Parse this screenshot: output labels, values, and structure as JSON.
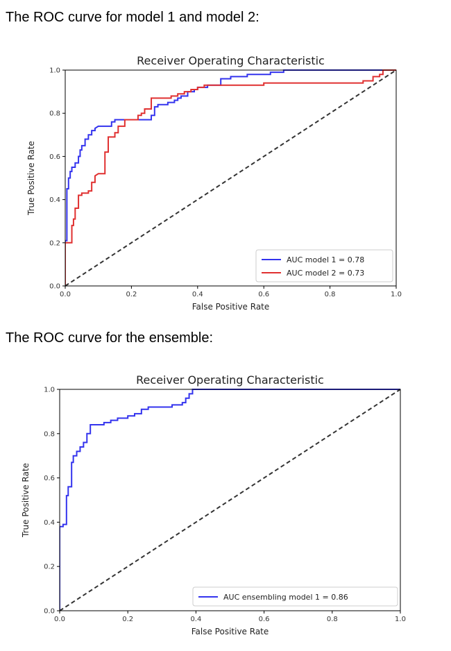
{
  "headings": {
    "first": "The ROC curve for model 1 and model 2:",
    "second": "The ROC curve for the ensemble:"
  },
  "chart_data": [
    {
      "type": "line",
      "title": "Receiver Operating Characteristic",
      "xlabel": "False Positive Rate",
      "ylabel": "True Positive Rate",
      "xlim": [
        0,
        1
      ],
      "ylim": [
        0,
        1
      ],
      "xticks": [
        "0.0",
        "0.2",
        "0.4",
        "0.6",
        "0.8",
        "1.0"
      ],
      "yticks": [
        "0.0",
        "0.2",
        "0.4",
        "0.6",
        "0.8",
        "1.0"
      ],
      "grid": false,
      "legend_position": "lower-right",
      "series": [
        {
          "name": "AUC model 1 = 0.78",
          "color": "#3333ee",
          "x": [
            0,
            0,
            0.005,
            0.005,
            0.01,
            0.01,
            0.015,
            0.015,
            0.02,
            0.02,
            0.03,
            0.03,
            0.04,
            0.04,
            0.045,
            0.045,
            0.05,
            0.05,
            0.06,
            0.06,
            0.07,
            0.07,
            0.08,
            0.08,
            0.09,
            0.09,
            0.1,
            0.14,
            0.14,
            0.15,
            0.15,
            0.16,
            0.16,
            0.18,
            0.22,
            0.26,
            0.26,
            0.27,
            0.27,
            0.28,
            0.28,
            0.31,
            0.31,
            0.33,
            0.33,
            0.34,
            0.34,
            0.35,
            0.35,
            0.37,
            0.37,
            0.39,
            0.39,
            0.4,
            0.4,
            0.43,
            0.43,
            0.44,
            0.47,
            0.47,
            0.5,
            0.5,
            0.55,
            0.55,
            0.58,
            0.62,
            0.62,
            0.66,
            0.66,
            0.7,
            1.0
          ],
          "y": [
            0,
            0.21,
            0.21,
            0.45,
            0.45,
            0.5,
            0.5,
            0.53,
            0.53,
            0.55,
            0.55,
            0.57,
            0.57,
            0.6,
            0.6,
            0.63,
            0.63,
            0.65,
            0.65,
            0.68,
            0.68,
            0.7,
            0.7,
            0.72,
            0.72,
            0.73,
            0.74,
            0.74,
            0.76,
            0.76,
            0.77,
            0.77,
            0.77,
            0.77,
            0.77,
            0.77,
            0.79,
            0.79,
            0.83,
            0.83,
            0.84,
            0.84,
            0.85,
            0.85,
            0.86,
            0.86,
            0.87,
            0.87,
            0.88,
            0.88,
            0.9,
            0.9,
            0.91,
            0.91,
            0.92,
            0.92,
            0.93,
            0.93,
            0.93,
            0.96,
            0.96,
            0.97,
            0.97,
            0.98,
            0.98,
            0.98,
            0.99,
            0.99,
            1.0,
            1.0,
            1.0
          ]
        },
        {
          "name": "AUC model 2 = 0.73",
          "color": "#e03030",
          "x": [
            0,
            0,
            0.02,
            0.02,
            0.025,
            0.025,
            0.03,
            0.03,
            0.04,
            0.04,
            0.05,
            0.05,
            0.07,
            0.07,
            0.08,
            0.08,
            0.09,
            0.09,
            0.1,
            0.12,
            0.12,
            0.13,
            0.13,
            0.15,
            0.15,
            0.16,
            0.16,
            0.18,
            0.18,
            0.22,
            0.22,
            0.23,
            0.23,
            0.24,
            0.24,
            0.26,
            0.26,
            0.32,
            0.32,
            0.34,
            0.34,
            0.36,
            0.36,
            0.38,
            0.38,
            0.4,
            0.4,
            0.42,
            0.42,
            0.5,
            0.5,
            0.6,
            0.6,
            0.9,
            0.9,
            0.93,
            0.93,
            0.95,
            0.95,
            0.96,
            0.96,
            1.0
          ],
          "y": [
            0,
            0.2,
            0.2,
            0.28,
            0.28,
            0.31,
            0.31,
            0.36,
            0.36,
            0.42,
            0.42,
            0.43,
            0.43,
            0.44,
            0.44,
            0.48,
            0.48,
            0.51,
            0.52,
            0.52,
            0.62,
            0.62,
            0.69,
            0.69,
            0.71,
            0.71,
            0.74,
            0.74,
            0.77,
            0.77,
            0.79,
            0.79,
            0.8,
            0.8,
            0.82,
            0.82,
            0.87,
            0.87,
            0.88,
            0.88,
            0.89,
            0.89,
            0.9,
            0.9,
            0.91,
            0.91,
            0.92,
            0.92,
            0.93,
            0.93,
            0.93,
            0.93,
            0.94,
            0.94,
            0.95,
            0.95,
            0.97,
            0.97,
            0.98,
            0.98,
            1.0,
            1.0
          ]
        },
        {
          "name": "",
          "color": "#333333",
          "dashed": true,
          "x": [
            0,
            1
          ],
          "y": [
            0,
            1
          ]
        }
      ]
    },
    {
      "type": "line",
      "title": "Receiver Operating Characteristic",
      "xlabel": "False Positive Rate",
      "ylabel": "True Positive Rate",
      "xlim": [
        0,
        1
      ],
      "ylim": [
        0,
        1
      ],
      "xticks": [
        "0.0",
        "0.2",
        "0.4",
        "0.6",
        "0.8",
        "1.0"
      ],
      "yticks": [
        "0.0",
        "0.2",
        "0.4",
        "0.6",
        "0.8",
        "1.0"
      ],
      "grid": false,
      "legend_position": "lower-right",
      "series": [
        {
          "name": "AUC ensembling model 1 = 0.86",
          "color": "#3333ee",
          "x": [
            0,
            0,
            0.01,
            0.01,
            0.02,
            0.02,
            0.025,
            0.025,
            0.035,
            0.035,
            0.04,
            0.04,
            0.05,
            0.05,
            0.06,
            0.06,
            0.07,
            0.07,
            0.08,
            0.08,
            0.09,
            0.09,
            0.13,
            0.13,
            0.15,
            0.15,
            0.17,
            0.17,
            0.2,
            0.2,
            0.22,
            0.22,
            0.24,
            0.24,
            0.26,
            0.26,
            0.33,
            0.33,
            0.36,
            0.36,
            0.37,
            0.37,
            0.38,
            0.38,
            0.39,
            0.39,
            0.4,
            1.0
          ],
          "y": [
            0,
            0.38,
            0.38,
            0.39,
            0.39,
            0.52,
            0.52,
            0.56,
            0.56,
            0.67,
            0.67,
            0.7,
            0.7,
            0.72,
            0.72,
            0.74,
            0.74,
            0.76,
            0.76,
            0.8,
            0.8,
            0.84,
            0.84,
            0.85,
            0.85,
            0.86,
            0.86,
            0.87,
            0.87,
            0.88,
            0.88,
            0.89,
            0.89,
            0.91,
            0.91,
            0.92,
            0.92,
            0.93,
            0.93,
            0.94,
            0.94,
            0.96,
            0.96,
            0.98,
            0.98,
            1.0,
            1.0,
            1.0
          ]
        },
        {
          "name": "",
          "color": "#333333",
          "dashed": true,
          "x": [
            0,
            1
          ],
          "y": [
            0,
            1
          ]
        }
      ]
    }
  ]
}
